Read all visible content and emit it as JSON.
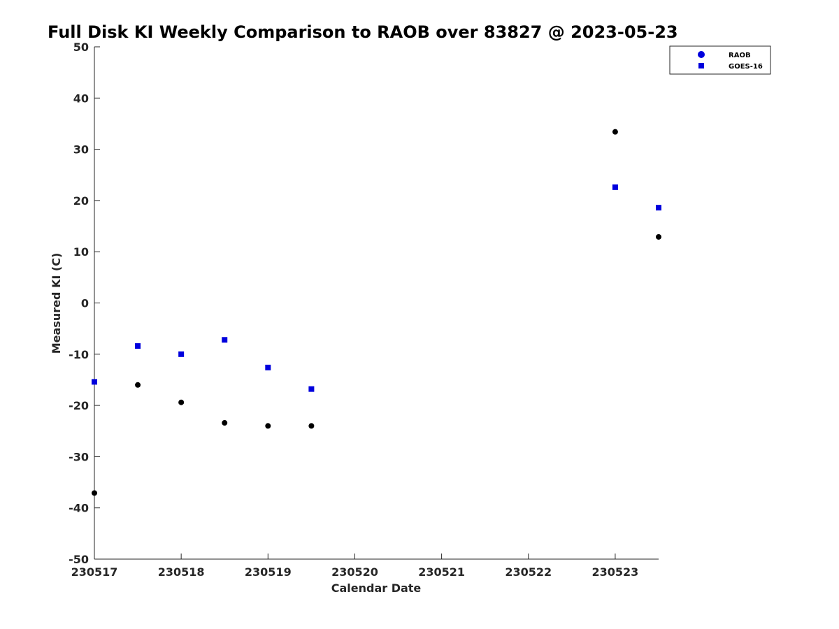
{
  "chart_data": {
    "type": "scatter",
    "title": "Full Disk KI Weekly Comparison to RAOB over 83827 @ 2023-05-23",
    "xlabel": "Calendar Date",
    "ylabel": "Measured KI (C)",
    "xlim": [
      0,
      6.5
    ],
    "ylim": [
      -50,
      50
    ],
    "x_ticks": [
      {
        "value": 0,
        "label": "230517"
      },
      {
        "value": 1,
        "label": "230518"
      },
      {
        "value": 2,
        "label": "230519"
      },
      {
        "value": 3,
        "label": "230520"
      },
      {
        "value": 4,
        "label": "230521"
      },
      {
        "value": 5,
        "label": "230522"
      },
      {
        "value": 6,
        "label": "230523"
      }
    ],
    "y_ticks": [
      50,
      40,
      30,
      20,
      10,
      0,
      -10,
      -20,
      -30,
      -40,
      -50
    ],
    "grid": false,
    "legend_position": "top-right",
    "series": [
      {
        "name": "RAOB",
        "marker": "circle",
        "marker_color": "#000000",
        "legend_color": "#0000dd",
        "points": [
          {
            "x": 0,
            "y": -37.1
          },
          {
            "x": 0.5,
            "y": -16.0
          },
          {
            "x": 1,
            "y": -19.4
          },
          {
            "x": 1.5,
            "y": -23.4
          },
          {
            "x": 2,
            "y": -24.0
          },
          {
            "x": 2.5,
            "y": -24.0
          },
          {
            "x": 6,
            "y": 33.4
          },
          {
            "x": 6.5,
            "y": 12.9
          }
        ]
      },
      {
        "name": "GOES-16",
        "marker": "square",
        "marker_color": "#0000dd",
        "legend_color": "#0000dd",
        "points": [
          {
            "x": 0,
            "y": -15.4
          },
          {
            "x": 0.5,
            "y": -8.4
          },
          {
            "x": 1,
            "y": -10.0
          },
          {
            "x": 1.5,
            "y": -7.2
          },
          {
            "x": 2,
            "y": -12.6
          },
          {
            "x": 2.5,
            "y": -16.8
          },
          {
            "x": 6,
            "y": 22.6
          },
          {
            "x": 6.5,
            "y": 18.6
          }
        ]
      }
    ]
  }
}
